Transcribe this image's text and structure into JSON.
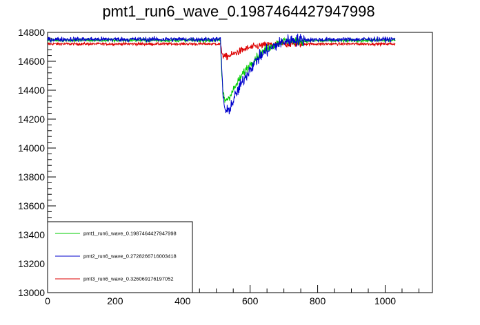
{
  "chart_data": {
    "type": "line",
    "title": "pmt1_run6_wave_0.1987464427947998",
    "xlabel": "",
    "ylabel": "",
    "xlim": [
      0,
      1140
    ],
    "ylim": [
      13000,
      14800
    ],
    "x_ticks": [
      0,
      200,
      400,
      600,
      800,
      1000
    ],
    "y_ticks": [
      13000,
      13200,
      13400,
      13600,
      13800,
      14000,
      14200,
      14400,
      14600,
      14800
    ],
    "x_tick_labels": [
      "0",
      "200",
      "400",
      "600",
      "800",
      "1000"
    ],
    "y_tick_labels": [
      "13000",
      "13200",
      "13400",
      "13600",
      "13800",
      "14000",
      "14200",
      "14400",
      "14600",
      "14800"
    ],
    "grid": false,
    "legend_position": "bottom-left",
    "x_range": [
      0,
      1030
    ],
    "pulse_start": 515,
    "series": [
      {
        "name": "pmt1_run6_wave_0.1987464427947998",
        "color": "#00cc00",
        "baseline": 14745,
        "noise": 6,
        "keypoints": [
          [
            0,
            14745
          ],
          [
            512,
            14745
          ],
          [
            515,
            14550
          ],
          [
            520,
            14380
          ],
          [
            525,
            14330
          ],
          [
            535,
            14345
          ],
          [
            545,
            14380
          ],
          [
            560,
            14440
          ],
          [
            580,
            14520
          ],
          [
            600,
            14580
          ],
          [
            620,
            14630
          ],
          [
            640,
            14670
          ],
          [
            660,
            14700
          ],
          [
            680,
            14725
          ],
          [
            700,
            14740
          ],
          [
            1030,
            14745
          ]
        ]
      },
      {
        "name": "pmt2_run6_wave_0.2728266716003418",
        "color": "#0000cc",
        "baseline": 14752,
        "noise": 9,
        "keypoints": [
          [
            0,
            14752
          ],
          [
            512,
            14752
          ],
          [
            515,
            14600
          ],
          [
            520,
            14350
          ],
          [
            528,
            14240
          ],
          [
            535,
            14260
          ],
          [
            545,
            14300
          ],
          [
            560,
            14380
          ],
          [
            580,
            14470
          ],
          [
            600,
            14550
          ],
          [
            620,
            14610
          ],
          [
            640,
            14655
          ],
          [
            660,
            14690
          ],
          [
            680,
            14715
          ],
          [
            700,
            14735
          ],
          [
            720,
            14748
          ],
          [
            1030,
            14752
          ]
        ]
      },
      {
        "name": "pmt3_run6_wave_0.326069176197052",
        "color": "#dd0000",
        "baseline": 14720,
        "noise": 5,
        "keypoints": [
          [
            0,
            14720
          ],
          [
            512,
            14720
          ],
          [
            515,
            14680
          ],
          [
            520,
            14640
          ],
          [
            527,
            14630
          ],
          [
            540,
            14640
          ],
          [
            560,
            14660
          ],
          [
            580,
            14680
          ],
          [
            600,
            14695
          ],
          [
            630,
            14708
          ],
          [
            660,
            14716
          ],
          [
            700,
            14720
          ],
          [
            1030,
            14720
          ]
        ]
      }
    ]
  }
}
